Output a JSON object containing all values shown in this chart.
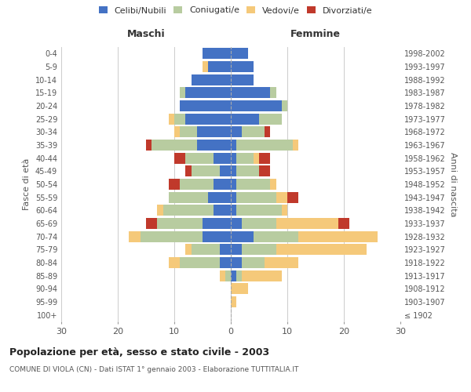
{
  "age_groups": [
    "100+",
    "95-99",
    "90-94",
    "85-89",
    "80-84",
    "75-79",
    "70-74",
    "65-69",
    "60-64",
    "55-59",
    "50-54",
    "45-49",
    "40-44",
    "35-39",
    "30-34",
    "25-29",
    "20-24",
    "15-19",
    "10-14",
    "5-9",
    "0-4"
  ],
  "birth_years": [
    "≤ 1902",
    "1903-1907",
    "1908-1912",
    "1913-1917",
    "1918-1922",
    "1923-1927",
    "1928-1932",
    "1933-1937",
    "1938-1942",
    "1943-1947",
    "1948-1952",
    "1953-1957",
    "1958-1962",
    "1963-1967",
    "1968-1972",
    "1973-1977",
    "1978-1982",
    "1983-1987",
    "1988-1992",
    "1993-1997",
    "1998-2002"
  ],
  "maschi": {
    "celibi": [
      0,
      0,
      0,
      0,
      2,
      2,
      5,
      5,
      3,
      4,
      3,
      2,
      3,
      6,
      6,
      8,
      9,
      8,
      7,
      4,
      5
    ],
    "coniugati": [
      0,
      0,
      0,
      1,
      7,
      5,
      11,
      8,
      9,
      7,
      6,
      5,
      5,
      8,
      3,
      2,
      0,
      1,
      0,
      0,
      0
    ],
    "vedovi": [
      0,
      0,
      0,
      1,
      2,
      1,
      2,
      0,
      1,
      0,
      0,
      0,
      0,
      0,
      1,
      1,
      0,
      0,
      0,
      1,
      0
    ],
    "divorziati": [
      0,
      0,
      0,
      0,
      0,
      0,
      0,
      2,
      0,
      0,
      2,
      1,
      2,
      1,
      0,
      0,
      0,
      0,
      0,
      0,
      0
    ]
  },
  "femmine": {
    "nubili": [
      0,
      0,
      0,
      1,
      2,
      2,
      4,
      2,
      1,
      1,
      1,
      1,
      1,
      1,
      2,
      5,
      9,
      7,
      4,
      4,
      3
    ],
    "coniugate": [
      0,
      0,
      0,
      1,
      4,
      6,
      8,
      6,
      8,
      7,
      6,
      4,
      3,
      10,
      4,
      4,
      1,
      1,
      0,
      0,
      0
    ],
    "vedove": [
      0,
      1,
      3,
      7,
      6,
      16,
      14,
      11,
      1,
      2,
      1,
      0,
      1,
      1,
      0,
      0,
      0,
      0,
      0,
      0,
      0
    ],
    "divorziate": [
      0,
      0,
      0,
      0,
      0,
      0,
      0,
      2,
      0,
      2,
      0,
      2,
      2,
      0,
      1,
      0,
      0,
      0,
      0,
      0,
      0
    ]
  },
  "colors": {
    "celibi_nubili": "#4472c4",
    "coniugati_e": "#b8cca0",
    "vedovi_e": "#f5c97a",
    "divorziati_e": "#c0392b"
  },
  "xlim": 30,
  "title": "Popolazione per età, sesso e stato civile - 2003",
  "subtitle": "COMUNE DI VIOLA (CN) - Dati ISTAT 1° gennaio 2003 - Elaborazione TUTTITALIA.IT",
  "ylabel_left": "Fasce di età",
  "ylabel_right": "Anni di nascita",
  "xlabel_left": "Maschi",
  "xlabel_right": "Femmine",
  "legend_labels": [
    "Celibi/Nubili",
    "Coniugati/e",
    "Vedovi/e",
    "Divorziati/e"
  ],
  "bg_color": "#ffffff",
  "grid_color": "#cccccc"
}
